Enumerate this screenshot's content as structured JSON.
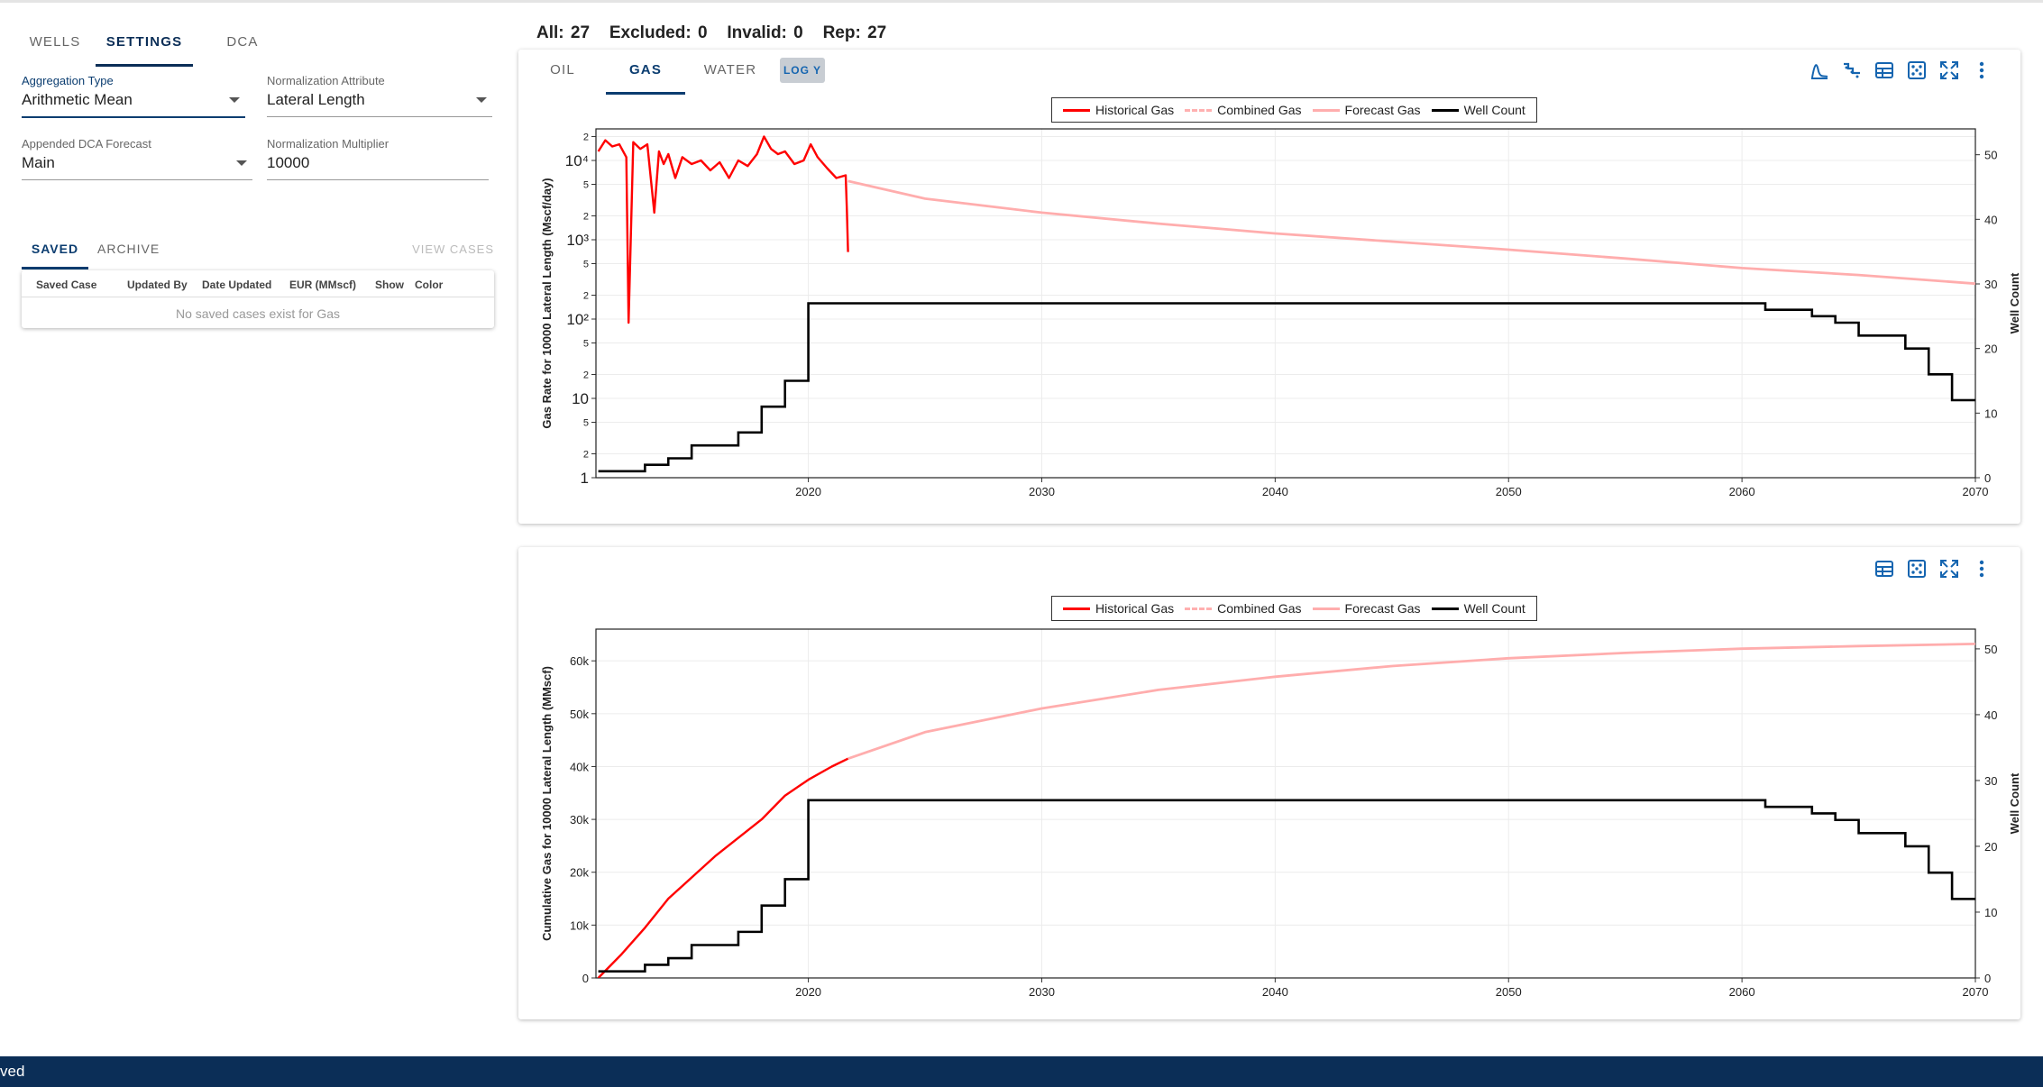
{
  "left": {
    "tabs": [
      "WELLS",
      "SETTINGS",
      "DCA"
    ],
    "active_tab": "SETTINGS",
    "aggregation_type": {
      "label": "Aggregation Type",
      "value": "Arithmetic Mean"
    },
    "normalization_attribute": {
      "label": "Normalization Attribute",
      "value": "Lateral Length"
    },
    "appended_dca_forecast": {
      "label": "Appended DCA Forecast",
      "value": "Main"
    },
    "normalization_multiplier": {
      "label": "Normalization Multiplier",
      "value": "10000"
    },
    "saved_tabs": [
      "SAVED",
      "ARCHIVE"
    ],
    "view_cases": "VIEW CASES",
    "table_columns": [
      "Saved Case",
      "Updated By",
      "Date Updated",
      "EUR (MMscf)",
      "Show",
      "Color"
    ],
    "empty_message": "No saved cases exist for Gas"
  },
  "counts": {
    "all": "All: 27",
    "excluded": "Excluded: 0",
    "invalid": "Invalid: 0",
    "rep": "Rep: 27"
  },
  "chart_tabs": [
    "OIL",
    "GAS",
    "WATER"
  ],
  "active_chart_tab": "GAS",
  "log_y": "LOG Y",
  "legend": [
    "Historical Gas",
    "Combined Gas",
    "Forecast Gas",
    "Well Count"
  ],
  "colors": {
    "historical": "#ff0000",
    "combined": "#ffb0b0",
    "forecast": "#ffadad",
    "well_count": "#000000",
    "brand": "#0b2e57",
    "accent": "#1565b0"
  },
  "toolbar_top": [
    "decline-curve-icon",
    "step-chart-icon",
    "table-icon",
    "scatter-icon",
    "expand-icon",
    "more-vert-icon"
  ],
  "toolbar_bottom": [
    "table-icon",
    "scatter-icon",
    "expand-icon",
    "more-vert-icon"
  ],
  "bottom_bar": "ved",
  "chart_data": [
    {
      "type": "line",
      "title": "",
      "ylabel": "Gas Rate for 10000 Lateral Length (Mscf/day)",
      "y2label": "Well Count",
      "xlabel": "",
      "x_ticks": [
        "2020",
        "2030",
        "2040",
        "2050",
        "2060",
        "2070"
      ],
      "xlim": [
        2010.9,
        2070
      ],
      "y_scale": "log",
      "ylim": [
        1,
        25000
      ],
      "y_tick_labels": [
        "1",
        "2",
        "5",
        "10",
        "2",
        "5",
        "10²",
        "2",
        "5",
        "10³",
        "2",
        "5",
        "10⁴",
        "2"
      ],
      "y2_ticks": [
        "0",
        "10",
        "20",
        "30",
        "40",
        "50"
      ],
      "y2lim": [
        0,
        54
      ],
      "series": [
        {
          "name": "Historical Gas",
          "x": [
            2011.0,
            2011.3,
            2011.6,
            2011.9,
            2012.2,
            2012.3,
            2012.5,
            2012.8,
            2013.1,
            2013.4,
            2013.6,
            2013.8,
            2014.0,
            2014.3,
            2014.6,
            2015.0,
            2015.4,
            2015.8,
            2016.2,
            2016.6,
            2017.0,
            2017.4,
            2017.8,
            2018.1,
            2018.4,
            2018.7,
            2019.0,
            2019.4,
            2019.8,
            2020.1,
            2020.4,
            2020.8,
            2021.2,
            2021.6,
            2021.65,
            2021.7
          ],
          "values": [
            13000,
            18000,
            15000,
            16000,
            11000,
            90,
            17000,
            14000,
            16000,
            2200,
            13000,
            9000,
            12000,
            6000,
            11000,
            9000,
            10000,
            7500,
            9500,
            6000,
            10000,
            8500,
            12000,
            20000,
            14000,
            12000,
            13000,
            9000,
            10000,
            16000,
            11000,
            8000,
            6000,
            6500,
            2400,
            700
          ]
        },
        {
          "name": "Forecast Gas",
          "x": [
            2021.7,
            2025,
            2030,
            2035,
            2040,
            2045,
            2050,
            2055,
            2060,
            2065,
            2070
          ],
          "values": [
            5500,
            3300,
            2200,
            1600,
            1200,
            950,
            750,
            580,
            440,
            360,
            280
          ]
        },
        {
          "name": "Well Count",
          "x": [
            2011,
            2013,
            2014,
            2015,
            2017,
            2018,
            2019,
            2020,
            2061,
            2063,
            2064,
            2065,
            2067,
            2068,
            2069,
            2070
          ],
          "values": [
            1,
            2,
            3,
            5,
            7,
            11,
            15,
            27,
            26,
            25,
            24,
            22,
            20,
            16,
            12,
            12
          ],
          "axis": "right",
          "step": true
        }
      ]
    },
    {
      "type": "line",
      "title": "",
      "ylabel": "Cumulative Gas for 10000 Lateral Length (MMscf)",
      "y2label": "Well Count",
      "xlabel": "",
      "x_ticks": [
        "2020",
        "2030",
        "2040",
        "2050",
        "2060",
        "2070"
      ],
      "xlim": [
        2010.9,
        2070
      ],
      "ylim": [
        0,
        66000
      ],
      "y_ticks": [
        "0",
        "10k",
        "20k",
        "30k",
        "40k",
        "50k",
        "60k"
      ],
      "y2_ticks": [
        "0",
        "10",
        "20",
        "30",
        "40",
        "50"
      ],
      "y2lim": [
        0,
        53
      ],
      "series": [
        {
          "name": "Historical Gas",
          "x": [
            2011,
            2012,
            2013,
            2014,
            2015,
            2016,
            2017,
            2018,
            2019,
            2020,
            2021,
            2021.7
          ],
          "values": [
            0,
            4500,
            9500,
            15000,
            19000,
            23000,
            26500,
            30000,
            34500,
            37500,
            40000,
            41500
          ]
        },
        {
          "name": "Forecast Gas",
          "x": [
            2021.7,
            2025,
            2030,
            2035,
            2040,
            2045,
            2050,
            2055,
            2060,
            2065,
            2070
          ],
          "values": [
            41500,
            46500,
            51000,
            54500,
            57000,
            59000,
            60500,
            61500,
            62300,
            62800,
            63200
          ]
        },
        {
          "name": "Well Count",
          "x": [
            2011,
            2013,
            2014,
            2015,
            2017,
            2018,
            2019,
            2020,
            2061,
            2063,
            2064,
            2065,
            2067,
            2068,
            2069,
            2070
          ],
          "values": [
            1,
            2,
            3,
            5,
            7,
            11,
            15,
            27,
            26,
            25,
            24,
            22,
            20,
            16,
            12,
            12
          ],
          "axis": "right",
          "step": true
        }
      ]
    }
  ]
}
